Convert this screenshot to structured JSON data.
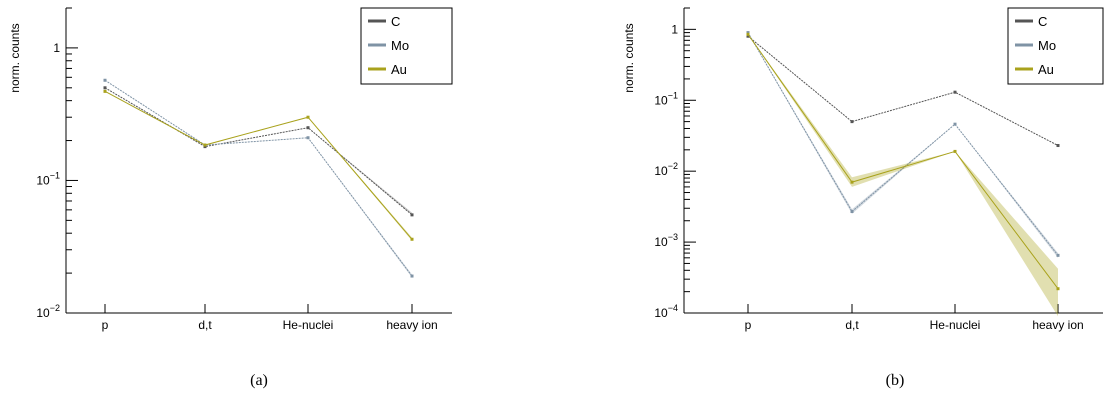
{
  "chart_data": [
    {
      "type": "line",
      "panel": "a",
      "caption": "(a)",
      "ylabel": "norm. counts",
      "xlabel": "",
      "yscale": "log",
      "ylim": [
        0.01,
        2
      ],
      "y_ticks": [
        {
          "value": 1,
          "mantissa": "1",
          "exp": ""
        },
        {
          "value": 0.1,
          "mantissa": "10",
          "exp": "−1"
        },
        {
          "value": 0.01,
          "mantissa": "10",
          "exp": "−2"
        }
      ],
      "categories": [
        "p",
        "d,t",
        "He-nuclei",
        "heavy ion"
      ],
      "legend_position": "top-right",
      "series": [
        {
          "name": "C",
          "color": "#555555",
          "values": [
            0.5,
            0.18,
            0.25,
            0.055
          ],
          "band": [
            [
              0.5,
              0.5
            ],
            [
              0.18,
              0.18
            ],
            [
              0.25,
              0.25
            ],
            [
              0.055,
              0.057
            ]
          ]
        },
        {
          "name": "Mo",
          "color": "#7f93a5",
          "values": [
            0.57,
            0.185,
            0.21,
            0.019
          ],
          "band": [
            [
              0.57,
              0.57
            ],
            [
              0.185,
              0.185
            ],
            [
              0.21,
              0.21
            ],
            [
              0.0185,
              0.0195
            ]
          ]
        },
        {
          "name": "Au",
          "color": "#a9a21c",
          "values": [
            0.47,
            0.185,
            0.3,
            0.036
          ],
          "band": [
            [
              0.47,
              0.47
            ],
            [
              0.185,
              0.185
            ],
            [
              0.3,
              0.3
            ],
            [
              0.035,
              0.037
            ]
          ]
        }
      ]
    },
    {
      "type": "line",
      "panel": "b",
      "caption": "(b)",
      "ylabel": "norm. counts",
      "xlabel": "",
      "yscale": "log",
      "ylim": [
        0.0001,
        2
      ],
      "y_ticks": [
        {
          "value": 1,
          "mantissa": "1",
          "exp": ""
        },
        {
          "value": 0.1,
          "mantissa": "10",
          "exp": "−1"
        },
        {
          "value": 0.01,
          "mantissa": "10",
          "exp": "−2"
        },
        {
          "value": 0.001,
          "mantissa": "10",
          "exp": "−3"
        },
        {
          "value": 0.0001,
          "mantissa": "10",
          "exp": "−4"
        }
      ],
      "categories": [
        "p",
        "d,t",
        "He-nuclei",
        "heavy ion"
      ],
      "legend_position": "top-right",
      "series": [
        {
          "name": "C",
          "color": "#555555",
          "values": [
            0.8,
            0.05,
            0.13,
            0.023
          ],
          "band": [
            [
              0.8,
              0.8
            ],
            [
              0.05,
              0.05
            ],
            [
              0.13,
              0.13
            ],
            [
              0.023,
              0.023
            ]
          ]
        },
        {
          "name": "Mo",
          "color": "#7f93a5",
          "values": [
            0.9,
            0.0027,
            0.046,
            0.00065
          ],
          "band": [
            [
              0.9,
              0.9
            ],
            [
              0.0025,
              0.0029
            ],
            [
              0.046,
              0.046
            ],
            [
              0.0006,
              0.0007
            ]
          ]
        },
        {
          "name": "Au",
          "color": "#a9a21c",
          "values": [
            0.85,
            0.007,
            0.019,
            0.00022
          ],
          "band": [
            [
              0.85,
              0.85
            ],
            [
              0.006,
              0.0082
            ],
            [
              0.019,
              0.019
            ],
            [
              9e-05,
              0.00042
            ]
          ]
        }
      ]
    }
  ]
}
